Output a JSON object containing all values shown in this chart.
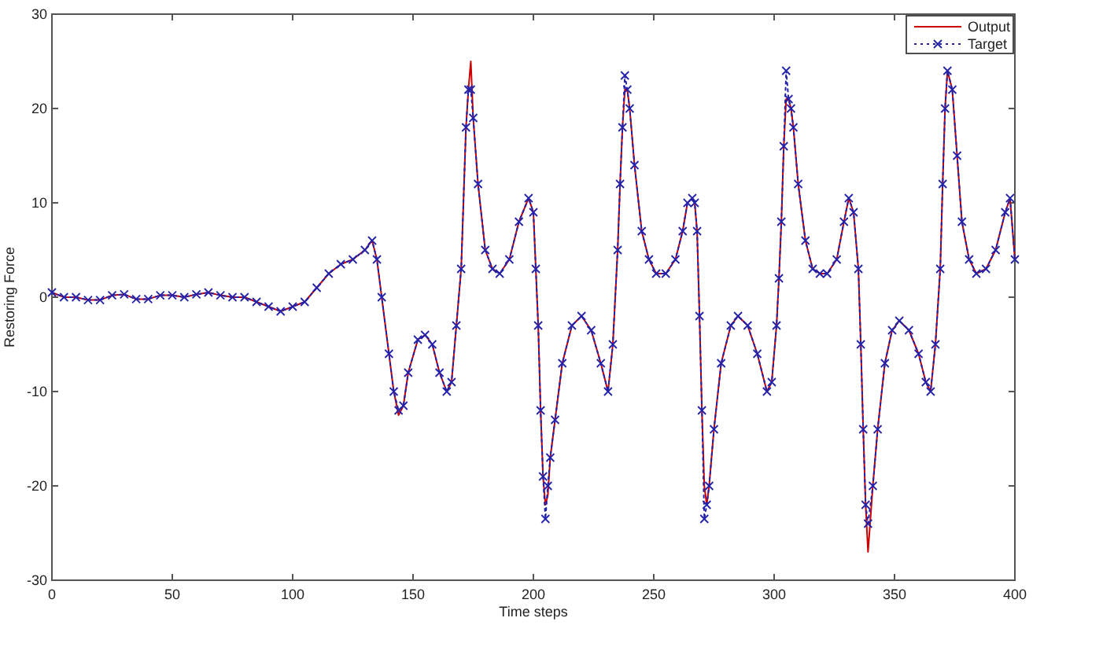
{
  "chart_data": {
    "type": "line",
    "xlabel": "Time steps",
    "ylabel": "Restoring Force",
    "xlim": [
      0,
      400
    ],
    "ylim": [
      -30,
      30
    ],
    "xticks": [
      0,
      50,
      100,
      150,
      200,
      250,
      300,
      350,
      400
    ],
    "yticks": [
      -30,
      -20,
      -10,
      0,
      10,
      20,
      30
    ],
    "grid": false,
    "legend": "top right",
    "x": [
      0,
      5,
      10,
      15,
      20,
      25,
      30,
      35,
      40,
      45,
      50,
      55,
      60,
      65,
      70,
      75,
      80,
      85,
      90,
      95,
      100,
      105,
      110,
      115,
      120,
      125,
      130,
      133,
      135,
      137,
      140,
      142,
      144,
      146,
      148,
      152,
      155,
      158,
      161,
      164,
      166,
      168,
      170,
      172,
      173,
      174,
      175,
      177,
      180,
      183,
      186,
      190,
      194,
      198,
      200,
      201,
      202,
      203,
      204,
      205,
      206,
      207,
      209,
      212,
      216,
      220,
      224,
      228,
      231,
      233,
      235,
      236,
      237,
      238,
      239,
      240,
      242,
      245,
      248,
      251,
      255,
      259,
      262,
      264,
      266,
      267,
      268,
      269,
      270,
      271,
      272,
      273,
      275,
      278,
      282,
      285,
      289,
      293,
      297,
      299,
      301,
      302,
      303,
      304,
      305,
      306,
      307,
      308,
      310,
      313,
      316,
      319,
      322,
      326,
      329,
      331,
      333,
      335,
      336,
      337,
      338,
      339,
      341,
      343,
      346,
      349,
      352,
      356,
      360,
      363,
      365,
      367,
      369,
      370,
      371,
      372,
      374,
      376,
      378,
      381,
      384,
      388,
      392,
      396,
      398,
      400
    ],
    "series": [
      {
        "name": "Output",
        "color": "#cc0000",
        "marker": "none",
        "line_style": "solid",
        "values": [
          0.5,
          0,
          0,
          -0.3,
          -0.3,
          0.2,
          0.3,
          -0.2,
          -0.2,
          0.2,
          0.2,
          0,
          0.3,
          0.5,
          0.2,
          0,
          0,
          -0.5,
          -1,
          -1.5,
          -1,
          -0.5,
          1,
          2.5,
          3.5,
          4,
          5,
          6,
          4,
          0,
          -6,
          -10,
          -12.5,
          -11.5,
          -8,
          -4.5,
          -4,
          -5,
          -8,
          -10,
          -9,
          -3,
          3,
          18,
          22,
          25,
          19,
          12,
          5,
          3,
          2.5,
          4,
          8,
          10.5,
          9,
          3,
          -3,
          -12,
          -19,
          -22,
          -21,
          -17,
          -13,
          -7,
          -3,
          -2,
          -3.5,
          -7,
          -10,
          -5,
          5,
          12,
          18,
          22,
          22,
          20,
          14,
          7,
          4,
          2.5,
          2.5,
          4,
          7,
          10,
          10.5,
          10,
          7,
          -2,
          -12,
          -20,
          -22,
          -20,
          -14,
          -7,
          -3,
          -2,
          -3,
          -6,
          -10,
          -9,
          -3,
          2,
          8,
          16,
          21,
          21,
          20,
          18,
          12,
          6,
          3,
          2.5,
          2.5,
          4,
          8,
          10.5,
          9,
          3,
          -5,
          -14,
          -22,
          -27,
          -20,
          -14,
          -7,
          -3.5,
          -2.5,
          -3.5,
          -6,
          -9,
          -10,
          -5,
          3,
          12,
          20,
          24,
          22,
          15,
          8,
          4,
          2.5,
          3,
          5,
          9,
          10.5,
          4
        ]
      },
      {
        "name": "Target",
        "color": "#2222aa",
        "marker": "cross",
        "line_style": "dotted",
        "values": [
          0.5,
          0,
          0,
          -0.3,
          -0.3,
          0.2,
          0.3,
          -0.2,
          -0.2,
          0.2,
          0.2,
          0,
          0.3,
          0.5,
          0.2,
          0,
          0,
          -0.5,
          -1,
          -1.5,
          -1,
          -0.5,
          1,
          2.5,
          3.5,
          4,
          5,
          6,
          4,
          0,
          -6,
          -10,
          -12,
          -11.5,
          -8,
          -4.5,
          -4,
          -5,
          -8,
          -10,
          -9,
          -3,
          3,
          18,
          22,
          22,
          19,
          12,
          5,
          3,
          2.5,
          4,
          8,
          10.5,
          9,
          3,
          -3,
          -12,
          -19,
          -23.5,
          -20,
          -17,
          -13,
          -7,
          -3,
          -2,
          -3.5,
          -7,
          -10,
          -5,
          5,
          12,
          18,
          23.5,
          22,
          20,
          14,
          7,
          4,
          2.5,
          2.5,
          4,
          7,
          10,
          10.5,
          10,
          7,
          -2,
          -12,
          -23.5,
          -22,
          -20,
          -14,
          -7,
          -3,
          -2,
          -3,
          -6,
          -10,
          -9,
          -3,
          2,
          8,
          16,
          24,
          21,
          20,
          18,
          12,
          6,
          3,
          2.5,
          2.5,
          4,
          8,
          10.5,
          9,
          3,
          -5,
          -14,
          -22,
          -24,
          -20,
          -14,
          -7,
          -3.5,
          -2.5,
          -3.5,
          -6,
          -9,
          -10,
          -5,
          3,
          12,
          20,
          24,
          22,
          15,
          8,
          4,
          2.5,
          3,
          5,
          9,
          10.5,
          4
        ]
      }
    ]
  }
}
